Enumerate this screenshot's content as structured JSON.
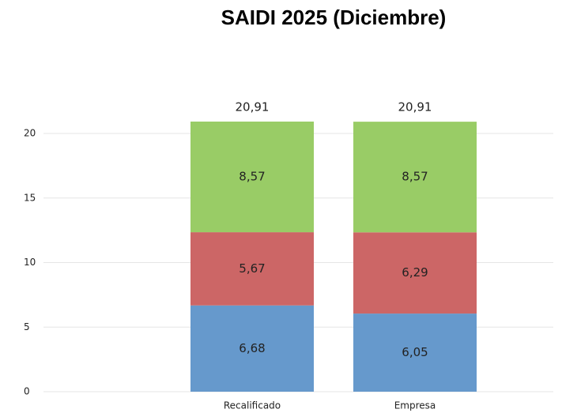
{
  "chart_data": {
    "type": "stacked_bar",
    "title": "SAIDI 2025 (Diciembre)",
    "categories": [
      "Recalificado",
      "Empresa"
    ],
    "series": [
      {
        "color": "#6699cc",
        "values": [
          6.68,
          6.05
        ],
        "value_labels": [
          "6,68",
          "6,05"
        ]
      },
      {
        "color": "#cc6666",
        "values": [
          5.67,
          6.29
        ],
        "value_labels": [
          "5,67",
          "6,29"
        ]
      },
      {
        "color": "#99cc66",
        "values": [
          8.57,
          8.57
        ],
        "value_labels": [
          "8,57",
          "8,57"
        ]
      }
    ],
    "total_labels": [
      "20,91",
      "20,91"
    ],
    "ylim": [
      0,
      22
    ],
    "yticks": [
      0,
      5,
      10,
      15,
      20
    ],
    "grid": true
  }
}
